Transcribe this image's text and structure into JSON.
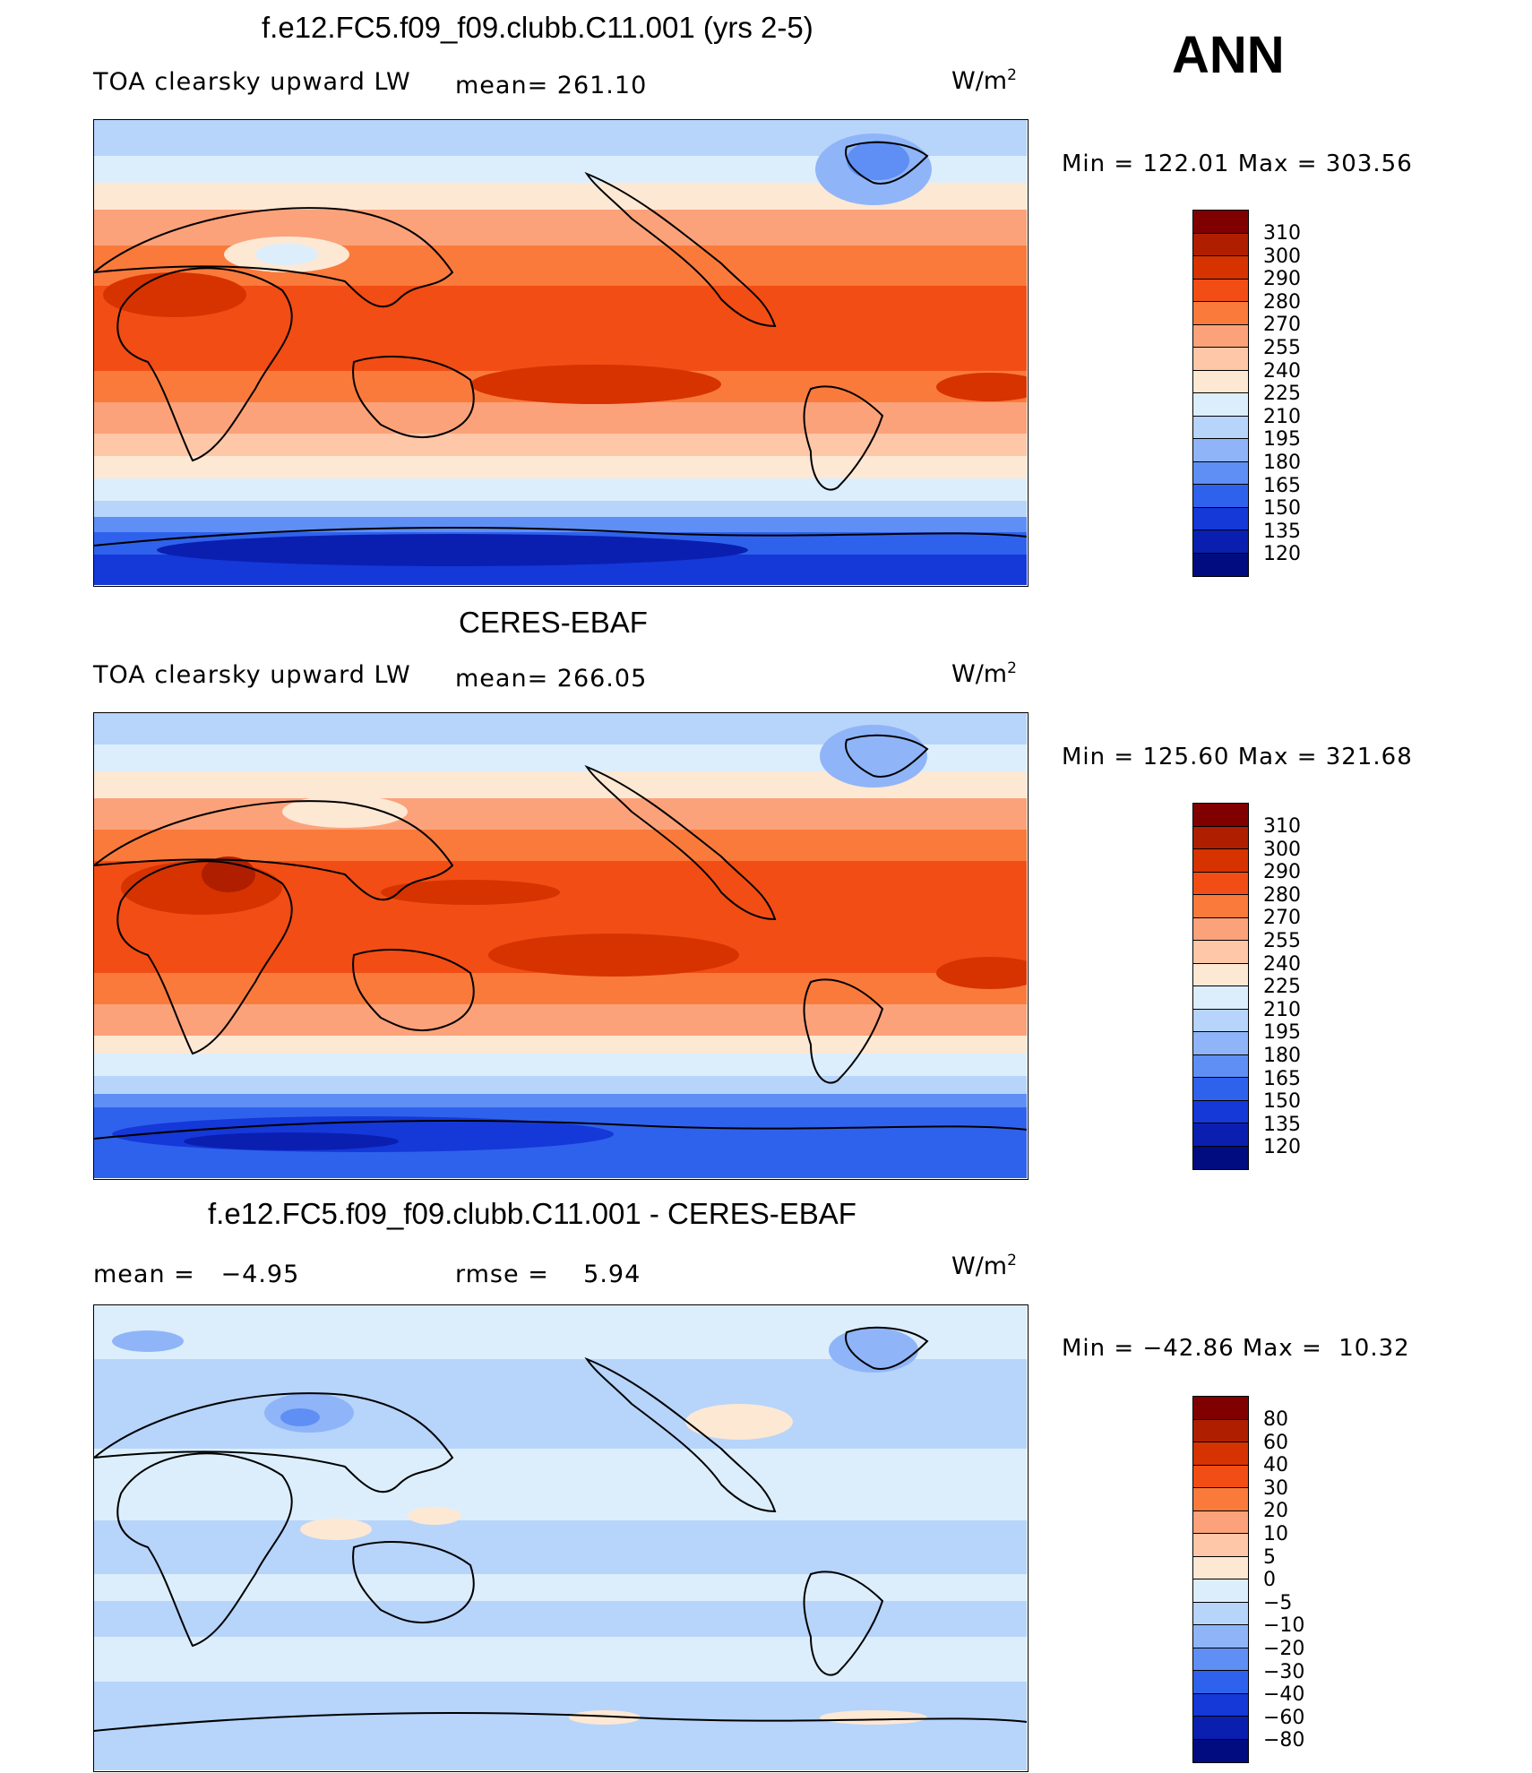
{
  "season": "ANN",
  "panels": [
    {
      "title": "f.e12.FC5.f09_f09.clubb.C11.001 (yrs 2-5)",
      "left_label": "TOA clearsky upward LW",
      "mid_label": "mean= 261.10",
      "units": "W/m",
      "units_sup": "2",
      "minmax": "Min = 122.01 Max = 303.56",
      "levels": [
        "310",
        "300",
        "290",
        "280",
        "270",
        "255",
        "240",
        "225",
        "210",
        "195",
        "180",
        "165",
        "150",
        "135",
        "120"
      ],
      "colors": [
        "#800000",
        "#b01e00",
        "#d63300",
        "#f24d14",
        "#fa7a3c",
        "#fca27a",
        "#fdc7a8",
        "#fde8d4",
        "#dceefc",
        "#b7d4fb",
        "#8fb5f8",
        "#5f8ff4",
        "#2f62ec",
        "#1538d8",
        "#0a1fb0",
        "#000c80"
      ],
      "mean": 261.1,
      "min": 122.01,
      "max": 303.56
    },
    {
      "title": "CERES-EBAF",
      "left_label": "TOA clearsky upward LW",
      "mid_label": "mean= 266.05",
      "units": "W/m",
      "units_sup": "2",
      "minmax": "Min = 125.60 Max = 321.68",
      "levels": [
        "310",
        "300",
        "290",
        "280",
        "270",
        "255",
        "240",
        "225",
        "210",
        "195",
        "180",
        "165",
        "150",
        "135",
        "120"
      ],
      "colors": [
        "#800000",
        "#b01e00",
        "#d63300",
        "#f24d14",
        "#fa7a3c",
        "#fca27a",
        "#fdc7a8",
        "#fde8d4",
        "#dceefc",
        "#b7d4fb",
        "#8fb5f8",
        "#5f8ff4",
        "#2f62ec",
        "#1538d8",
        "#0a1fb0",
        "#000c80"
      ],
      "mean": 266.05,
      "min": 125.6,
      "max": 321.68
    },
    {
      "title": "f.e12.FC5.f09_f09.clubb.C11.001 - CERES-EBAF",
      "left_label": "mean =   −4.95",
      "mid_label": "rmse =    5.94",
      "units": "W/m",
      "units_sup": "2",
      "minmax": "Min = −42.86 Max =  10.32",
      "levels": [
        "80",
        "60",
        "40",
        "30",
        "20",
        "10",
        "5",
        "0",
        "−5",
        "−10",
        "−20",
        "−30",
        "−40",
        "−60",
        "−80"
      ],
      "colors": [
        "#800000",
        "#b01e00",
        "#d63300",
        "#f24d14",
        "#fa7a3c",
        "#fca27a",
        "#fdc7a8",
        "#fde8d4",
        "#dceefc",
        "#b7d4fb",
        "#8fb5f8",
        "#5f8ff4",
        "#2f62ec",
        "#1538d8",
        "#0a1fb0",
        "#000c80"
      ],
      "mean": -4.95,
      "rmse": 5.94,
      "min": -42.86,
      "max": 10.32
    }
  ]
}
